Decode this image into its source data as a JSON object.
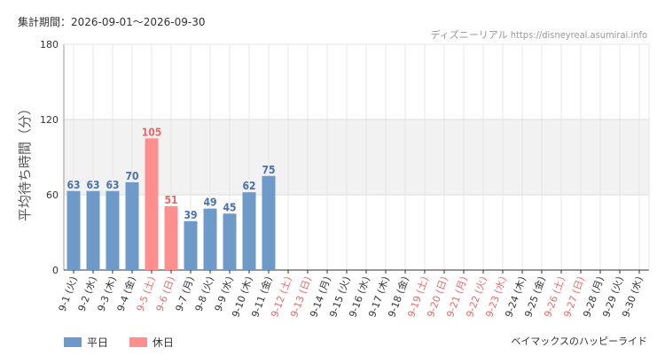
{
  "header": {
    "period_label": "集計期間：2026-09-01～2026-09-30",
    "source": "ディズニーリアル https://disneyreal.asumirai.info"
  },
  "footer": {
    "chart_title": "ベイマックスのハッピーライド"
  },
  "colors": {
    "weekday": "#6d9ac9",
    "holiday": "#ff8f8f",
    "weekday_label": "#4a72a8",
    "holiday_label": "#e56a6a"
  },
  "chart_data": {
    "type": "bar",
    "ylabel": "平均待ち時間（分）",
    "ylim": [
      0,
      180
    ],
    "yticks": [
      0,
      60,
      120,
      180
    ],
    "shaded_band": [
      60,
      120
    ],
    "legend": [
      "平日",
      "休日"
    ],
    "legend_placement": "bottom-left",
    "categories": [
      "9-1 (火)",
      "9-2 (水)",
      "9-3 (木)",
      "9-4 (金)",
      "9-5 (土)",
      "9-6 (日)",
      "9-7 (月)",
      "9-8 (火)",
      "9-9 (水)",
      "9-10 (木)",
      "9-11 (金)",
      "9-12 (土)",
      "9-13 (日)",
      "9-14 (月)",
      "9-15 (火)",
      "9-16 (水)",
      "9-17 (木)",
      "9-18 (金)",
      "9-19 (土)",
      "9-20 (日)",
      "9-21 (月)",
      "9-22 (火)",
      "9-23 (水)",
      "9-24 (木)",
      "9-25 (金)",
      "9-26 (土)",
      "9-27 (日)",
      "9-28 (月)",
      "9-29 (火)",
      "9-30 (水)"
    ],
    "day_type": [
      "平日",
      "平日",
      "平日",
      "平日",
      "休日",
      "休日",
      "平日",
      "平日",
      "平日",
      "平日",
      "平日",
      "休日",
      "休日",
      "平日",
      "平日",
      "平日",
      "平日",
      "平日",
      "休日",
      "休日",
      "休日",
      "休日",
      "休日",
      "平日",
      "平日",
      "休日",
      "休日",
      "平日",
      "平日",
      "平日"
    ],
    "values": [
      63,
      63,
      63,
      70,
      105,
      51,
      39,
      49,
      45,
      62,
      75,
      null,
      null,
      null,
      null,
      null,
      null,
      null,
      null,
      null,
      null,
      null,
      null,
      null,
      null,
      null,
      null,
      null,
      null,
      null
    ]
  }
}
